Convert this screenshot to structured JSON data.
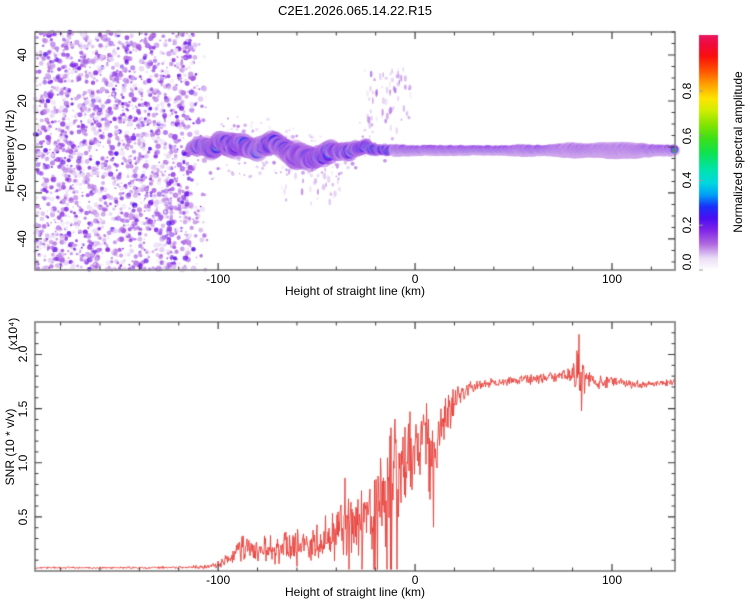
{
  "title": "C2E1.2026.065.14.22.R15",
  "colors": {
    "line_red": "#e8403a",
    "frame_gray": "#7c7c7c",
    "tick_dark": "#3c3c3c",
    "text": "#000000",
    "background": "#ffffff"
  },
  "top_panel": {
    "ylabel": "Frequency (Hz)",
    "xlabel": "Height of straight line (km)",
    "x_tick_labels": [
      "-100",
      "0",
      "100"
    ],
    "y_tick_labels": [
      "40",
      "20",
      "0",
      "-20",
      "-40"
    ]
  },
  "colorbar": {
    "label": "Normalized spectral amplitude",
    "tick_labels": [
      "0.0",
      "0.2",
      "0.4",
      "0.6",
      "0.8"
    ]
  },
  "bottom_panel": {
    "ylabel": "SNR (10 * v/v)",
    "ylabel_multiplier": "(x10⁴)",
    "xlabel": "Height of straight line (km)",
    "x_tick_labels": [
      "-100",
      "0",
      "100"
    ],
    "y_tick_labels": [
      "0.5",
      "1.0",
      "1.5",
      "2.0"
    ]
  },
  "chart_data": [
    {
      "type": "heatmap",
      "title": "C2E1.2026.065.14.22.R15",
      "xlabel": "Height of straight line (km)",
      "ylabel": "Frequency (Hz)",
      "xlim": [
        -193,
        132
      ],
      "ylim": [
        -53.5,
        50
      ],
      "x_major_ticks": [
        -100,
        0,
        100
      ],
      "x_minor_step": 20,
      "y_major_ticks": [
        -40,
        -20,
        0,
        20,
        40
      ],
      "y_minor_step": 5,
      "grid": false,
      "colorbar": {
        "label": "Normalized spectral amplitude",
        "range": [
          0,
          1.05
        ],
        "ticks": [
          0,
          0.2,
          0.4,
          0.6,
          0.8
        ]
      },
      "colormap_stops": [
        [
          0.0,
          "#ffffff"
        ],
        [
          0.05,
          "#eadef6"
        ],
        [
          0.11,
          "#b06ae0"
        ],
        [
          0.17,
          "#8024e8"
        ],
        [
          0.22,
          "#4a0ef2"
        ],
        [
          0.27,
          "#1a30fa"
        ],
        [
          0.32,
          "#00a0f8"
        ],
        [
          0.37,
          "#00d8e0"
        ],
        [
          0.43,
          "#00e4a8"
        ],
        [
          0.5,
          "#10e24e"
        ],
        [
          0.56,
          "#3ce018"
        ],
        [
          0.62,
          "#86e400"
        ],
        [
          0.68,
          "#d2ee00"
        ],
        [
          0.73,
          "#ffe400"
        ],
        [
          0.79,
          "#ffa000"
        ],
        [
          0.85,
          "#ff5000"
        ],
        [
          0.91,
          "#fa0f0f"
        ],
        [
          0.96,
          "#f00a3c"
        ],
        [
          1.0,
          "#e81760"
        ]
      ],
      "noise_region": {
        "x_range": [
          -193,
          -102
        ],
        "fade_start": -118,
        "amplitude_range": [
          0.03,
          0.18
        ]
      },
      "sparse_noise": {
        "x_range": [
          -104,
          -14
        ],
        "spread_hz": 15
      },
      "wisps": [
        {
          "x_range": [
            -26,
            -2
          ],
          "f_range": [
            2,
            34
          ],
          "count": 70
        },
        {
          "x_range": [
            -68,
            -38
          ],
          "f_range": [
            -26,
            -6
          ],
          "count": 45
        }
      ],
      "band_points_km_centerHz_halfwidthHz_intensity": [
        [
          -113,
          0,
          3.5,
          0.3
        ],
        [
          -110,
          0.5,
          4.5,
          0.45
        ],
        [
          -107,
          1,
          5,
          0.5
        ],
        [
          -104,
          -1,
          5,
          0.55
        ],
        [
          -100,
          1.5,
          5,
          0.6
        ],
        [
          -96,
          2,
          5,
          0.65
        ],
        [
          -92,
          0.5,
          5.5,
          0.6
        ],
        [
          -88,
          1.5,
          5,
          0.7
        ],
        [
          -84,
          -0.5,
          5,
          0.65
        ],
        [
          -80,
          -1.5,
          5.5,
          0.6
        ],
        [
          -76,
          1,
          5,
          0.7
        ],
        [
          -72,
          2,
          5,
          0.65
        ],
        [
          -68,
          0,
          5,
          0.6
        ],
        [
          -64,
          -2,
          5.5,
          0.65
        ],
        [
          -60,
          -3.5,
          6,
          0.6
        ],
        [
          -56,
          -5,
          6,
          0.55
        ],
        [
          -52,
          -5,
          5.5,
          0.6
        ],
        [
          -48,
          -4,
          5,
          0.65
        ],
        [
          -44,
          -2.5,
          5,
          0.7
        ],
        [
          -40,
          -1,
          4.5,
          0.75
        ],
        [
          -36,
          -2.5,
          4.5,
          0.7
        ],
        [
          -32,
          -1.5,
          4,
          0.75
        ],
        [
          -28,
          0.5,
          4,
          0.8
        ],
        [
          -24,
          -0.5,
          3.5,
          0.85
        ],
        [
          -20,
          -1,
          3,
          0.88
        ],
        [
          -16,
          -1.5,
          2.8,
          0.9
        ],
        [
          -12,
          -1.5,
          2.5,
          0.92
        ],
        [
          -6,
          -1.5,
          2.2,
          0.93
        ],
        [
          0,
          -1.5,
          2,
          0.93
        ],
        [
          10,
          -1.5,
          2,
          0.93
        ],
        [
          20,
          -1.5,
          2,
          0.9
        ],
        [
          30,
          -1.5,
          1.9,
          0.93
        ],
        [
          45,
          -1.5,
          1.9,
          0.93
        ],
        [
          55,
          -1.5,
          2.4,
          0.93
        ],
        [
          65,
          -1.5,
          2,
          0.93
        ],
        [
          80,
          -1.5,
          3,
          0.93
        ],
        [
          88,
          -1.5,
          2.6,
          0.9
        ],
        [
          100,
          -1.5,
          3.2,
          0.93
        ],
        [
          112,
          -1.5,
          3,
          0.93
        ],
        [
          122,
          -1.5,
          2.2,
          0.93
        ],
        [
          132,
          -1.5,
          2.2,
          0.93
        ]
      ]
    },
    {
      "type": "line",
      "xlabel": "Height of straight line (km)",
      "ylabel": "SNR (10 * v/v)",
      "scale_note": "(x10⁴)",
      "xlim": [
        -193,
        132
      ],
      "ylim": [
        0,
        2.3
      ],
      "x_major_ticks": [
        -100,
        0,
        100
      ],
      "x_minor_step": 20,
      "y_major_ticks": [
        0.5,
        1.0,
        1.5,
        2.0
      ],
      "y_minor_step": 0.1,
      "grid": false,
      "line_color": "#e8403a",
      "series": [
        {
          "name": "SNR",
          "points_km_value_jitter": [
            [
              -193,
              0.03,
              0.012
            ],
            [
              -150,
              0.03,
              0.012
            ],
            [
              -120,
              0.032,
              0.015
            ],
            [
              -108,
              0.035,
              0.02
            ],
            [
              -102,
              0.05,
              0.03
            ],
            [
              -97,
              0.09,
              0.06
            ],
            [
              -92,
              0.15,
              0.12
            ],
            [
              -88,
              0.28,
              0.22
            ],
            [
              -84,
              0.22,
              0.2
            ],
            [
              -80,
              0.16,
              0.13
            ],
            [
              -76,
              0.2,
              0.16
            ],
            [
              -72,
              0.18,
              0.15
            ],
            [
              -68,
              0.22,
              0.18
            ],
            [
              -64,
              0.2,
              0.17
            ],
            [
              -60,
              0.24,
              0.2
            ],
            [
              -56,
              0.25,
              0.22
            ],
            [
              -52,
              0.22,
              0.18
            ],
            [
              -48,
              0.28,
              0.24
            ],
            [
              -44,
              0.3,
              0.26
            ],
            [
              -40,
              0.32,
              0.28
            ],
            [
              -37,
              0.55,
              0.5
            ],
            [
              -34,
              0.5,
              0.45
            ],
            [
              -31,
              0.4,
              0.32
            ],
            [
              -28,
              0.45,
              0.38
            ],
            [
              -25,
              0.5,
              0.42
            ],
            [
              -22,
              0.55,
              0.45
            ],
            [
              -19,
              0.6,
              0.5
            ],
            [
              -16,
              0.65,
              0.55
            ],
            [
              -13,
              0.8,
              0.65
            ],
            [
              -11,
              1.05,
              1.05
            ],
            [
              -9,
              0.85,
              0.6
            ],
            [
              -7,
              0.95,
              0.5
            ],
            [
              -5,
              1,
              0.45
            ],
            [
              -3,
              1.05,
              0.5
            ],
            [
              -1,
              1.1,
              0.45
            ],
            [
              1,
              1.15,
              0.4
            ],
            [
              3,
              1.2,
              0.4
            ],
            [
              5,
              1.15,
              0.45
            ],
            [
              7,
              1,
              0.6
            ],
            [
              9,
              1.1,
              0.5
            ],
            [
              11,
              1.25,
              0.4
            ],
            [
              13,
              1.35,
              0.35
            ],
            [
              15,
              1.45,
              0.3
            ],
            [
              17,
              1.5,
              0.28
            ],
            [
              19,
              1.55,
              0.22
            ],
            [
              22,
              1.62,
              0.15
            ],
            [
              25,
              1.66,
              0.1
            ],
            [
              28,
              1.7,
              0.08
            ],
            [
              32,
              1.72,
              0.06
            ],
            [
              38,
              1.74,
              0.05
            ],
            [
              45,
              1.75,
              0.05
            ],
            [
              52,
              1.76,
              0.05
            ],
            [
              58,
              1.77,
              0.06
            ],
            [
              64,
              1.78,
              0.06
            ],
            [
              70,
              1.79,
              0.06
            ],
            [
              75,
              1.8,
              0.07
            ],
            [
              79,
              1.8,
              0.08
            ],
            [
              82,
              1.85,
              0.45
            ],
            [
              84,
              1.8,
              0.4
            ],
            [
              86,
              1.78,
              0.15
            ],
            [
              90,
              1.78,
              0.07
            ],
            [
              95,
              1.72,
              0.08
            ],
            [
              100,
              1.76,
              0.06
            ],
            [
              105,
              1.75,
              0.05
            ],
            [
              110,
              1.73,
              0.05
            ],
            [
              115,
              1.72,
              0.05
            ],
            [
              120,
              1.73,
              0.04
            ],
            [
              126,
              1.74,
              0.04
            ],
            [
              132,
              1.75,
              0.04
            ]
          ]
        }
      ]
    }
  ]
}
